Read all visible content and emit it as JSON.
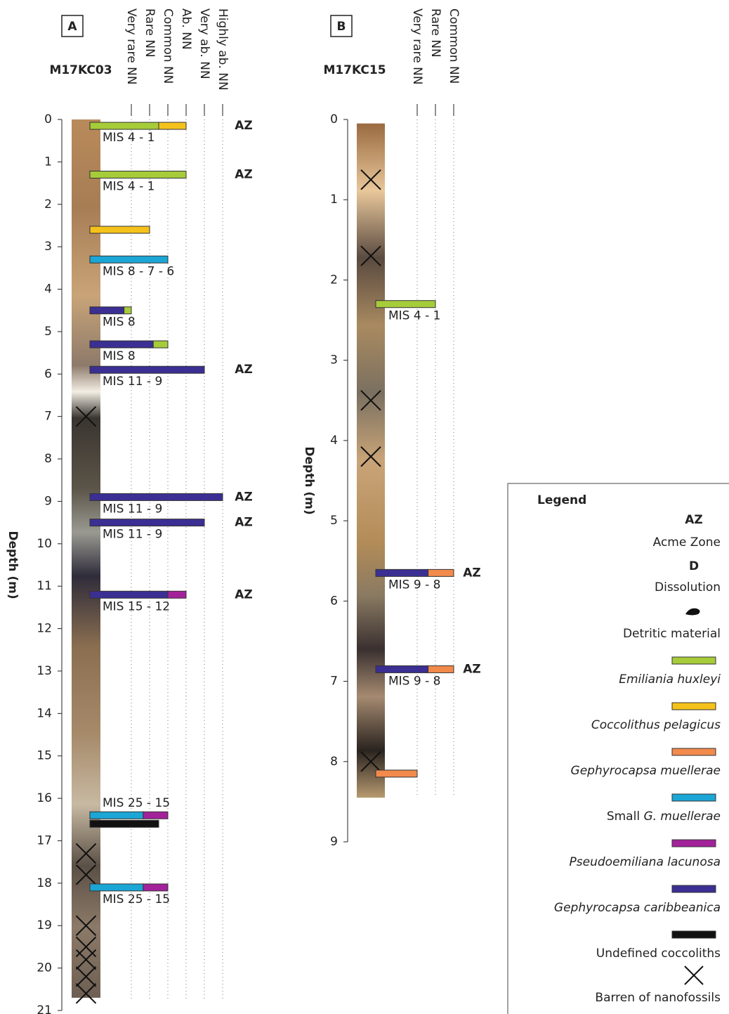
{
  "panels": [
    {
      "label": "A",
      "core": "M17KC03",
      "core_color": "#2e86c1",
      "ylabel": "Depth (m)",
      "ylim": [
        0,
        21
      ],
      "yticks": [
        0,
        1,
        2,
        3,
        4,
        5,
        6,
        7,
        8,
        9,
        10,
        11,
        12,
        13,
        14,
        15,
        16,
        17,
        18,
        19,
        20,
        21
      ],
      "core_range": [
        0,
        20.7
      ],
      "levels": [
        "Very rare NN",
        "Rare NN",
        "Common NN",
        "Ab. NN",
        "Very ab. NN",
        "Highly ab. NN"
      ],
      "level_values": [
        1,
        2,
        3,
        4,
        5,
        6
      ],
      "bars": [
        {
          "depth": 0.15,
          "segments": [
            {
              "color": "#a6cc3a",
              "to": 2.5
            },
            {
              "color": "#f5c21b",
              "to": 4
            }
          ],
          "label": "MIS 4 - 1",
          "az": "AZ",
          "az_color": "#a6cc3a"
        },
        {
          "depth": 1.3,
          "segments": [
            {
              "color": "#a6cc3a",
              "to": 4
            }
          ],
          "label": "MIS 4 - 1",
          "az": "AZ",
          "az_color": "#a6cc3a"
        },
        {
          "depth": 2.6,
          "segments": [
            {
              "color": "#f5c21b",
              "to": 2
            }
          ]
        },
        {
          "depth": 3.3,
          "segments": [
            {
              "color": "#1ba6d6",
              "to": 3
            }
          ],
          "label": "MIS 8 - 7 - 6"
        },
        {
          "depth": 4.5,
          "segments": [
            {
              "color": "#3b2f93",
              "to": 0.6
            },
            {
              "color": "#a6cc3a",
              "to": 1
            }
          ],
          "label": "MIS 8"
        },
        {
          "depth": 5.3,
          "segments": [
            {
              "color": "#3b2f93",
              "to": 2.2
            },
            {
              "color": "#a6cc3a",
              "to": 3
            }
          ],
          "label": "MIS 8"
        },
        {
          "depth": 5.9,
          "segments": [
            {
              "color": "#3b2f93",
              "to": 5
            }
          ],
          "label": "MIS 11 - 9",
          "az": "AZ",
          "az_color": "#3b2f93"
        },
        {
          "depth": 8.9,
          "segments": [
            {
              "color": "#3b2f93",
              "to": 6
            }
          ],
          "label": "MIS 11 - 9",
          "az": "AZ",
          "az_color": "#3b2f93"
        },
        {
          "depth": 9.5,
          "segments": [
            {
              "color": "#3b2f93",
              "to": 5
            }
          ],
          "label": "MIS 11 - 9",
          "az": "AZ",
          "az_color": "#3b2f93"
        },
        {
          "depth": 11.2,
          "segments": [
            {
              "color": "#3b2f93",
              "to": 3
            },
            {
              "color": "#a3229a",
              "to": 4
            }
          ],
          "label": "MIS 15 - 12",
          "az": "AZ",
          "az_color": "#3b2f93"
        },
        {
          "depth": 16.4,
          "segments": [
            {
              "color": "#1ba6d6",
              "to": 1.65
            },
            {
              "color": "#a3229a",
              "to": 3
            }
          ],
          "label": "MIS 25 - 15"
        },
        {
          "depth": 16.6,
          "segments": [
            {
              "color": "#111111",
              "to": 2.5
            }
          ]
        },
        {
          "depth": 18.1,
          "segments": [
            {
              "color": "#1ba6d6",
              "to": 1.65
            },
            {
              "color": "#a3229a",
              "to": 3
            }
          ],
          "label": "MIS 25 - 15"
        }
      ],
      "barren": [
        7.0,
        17.3,
        17.8,
        19.0,
        19.5,
        19.8,
        20.2,
        20.6
      ]
    },
    {
      "label": "B",
      "core": "M17KC15",
      "core_color": "#3cb54a",
      "ylabel": "Depth (m)",
      "ylim": [
        0,
        9
      ],
      "yticks": [
        0,
        1,
        2,
        3,
        4,
        5,
        6,
        7,
        8,
        9
      ],
      "core_range": [
        0.05,
        8.45
      ],
      "levels": [
        "Very rare NN",
        "Rare NN",
        "Common NN"
      ],
      "level_values": [
        1,
        2,
        3
      ],
      "bars": [
        {
          "depth": 2.3,
          "segments": [
            {
              "color": "#a6cc3a",
              "to": 2
            }
          ],
          "label": "MIS 4 - 1"
        },
        {
          "depth": 5.65,
          "segments": [
            {
              "color": "#3b2f93",
              "to": 1.6
            },
            {
              "color": "#f28a4b",
              "to": 3
            }
          ],
          "label": "MIS 9 - 8",
          "az": "AZ",
          "az_color": "#3b2f93"
        },
        {
          "depth": 6.85,
          "segments": [
            {
              "color": "#3b2f93",
              "to": 1.6
            },
            {
              "color": "#f28a4b",
              "to": 3
            }
          ],
          "label": "MIS 9 - 8",
          "az": "AZ",
          "az_color": "#3b2f93"
        },
        {
          "depth": 8.15,
          "segments": [
            {
              "color": "#f28a4b",
              "to": 1
            }
          ]
        }
      ],
      "barren": [
        0.75,
        1.7,
        3.5,
        4.2,
        8.0
      ]
    }
  ],
  "legend": {
    "title": "Legend",
    "az": "AZ",
    "az_text": "Acme Zone",
    "d": "D",
    "d_text": "Dissolution",
    "detritic": "Detritic material",
    "items": [
      {
        "color": "#a6cc3a",
        "name": "Emiliania huxleyi"
      },
      {
        "color": "#f5c21b",
        "name": "Coccolithus pelagicus"
      },
      {
        "color": "#f28a4b",
        "name": "Gephyrocapsa muellerae"
      },
      {
        "color": "#1ba6d6",
        "prefix": "Small",
        "name": "G. muellerae"
      },
      {
        "color": "#a3229a",
        "name": "Pseudoemiliana lacunosa"
      },
      {
        "color": "#3b2f93",
        "name": "Gephyrocapsa caribbeanica"
      },
      {
        "color": "#111111",
        "plain": "Undefined coccoliths"
      }
    ],
    "barren": "Barren of nanofossils"
  }
}
